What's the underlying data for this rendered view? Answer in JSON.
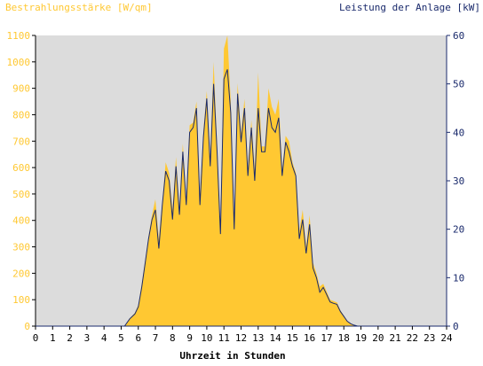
{
  "chart_data": {
    "type": "area",
    "left_axis_title": "Bestrahlungsstärke [W/qm]",
    "right_axis_title": "Leistung der Anlage [kW]",
    "xlabel": "Uhrzeit in Stunden",
    "x_ticks": [
      "0",
      "1",
      "2",
      "3",
      "4",
      "5",
      "6",
      "7",
      "8",
      "9",
      "10",
      "11",
      "12",
      "13",
      "14",
      "15",
      "16",
      "17",
      "18",
      "19",
      "20",
      "21",
      "22",
      "23",
      "24"
    ],
    "left_ticks": [
      "0",
      "100",
      "200",
      "300",
      "400",
      "500",
      "600",
      "700",
      "800",
      "900",
      "1000",
      "1100"
    ],
    "right_ticks": [
      "0",
      "10",
      "20",
      "30",
      "40",
      "50",
      "60"
    ],
    "xlim": [
      0,
      24
    ],
    "ylim_left": [
      0,
      1100
    ],
    "ylim_right": [
      0,
      60
    ],
    "grid": false,
    "colors": {
      "plot_bg": "#dcdcdc",
      "irradiance_fill": "#ffc832",
      "power_line": "#1a2a6c",
      "left_axis_text": "#ffc832",
      "right_axis_text": "#1a2a6c",
      "axis_text": "#000000"
    },
    "series": [
      {
        "name": "Bestrahlungsstärke",
        "axis": "left",
        "style": "area",
        "x": [
          5.2,
          5.5,
          5.8,
          6.0,
          6.2,
          6.4,
          6.6,
          6.8,
          7.0,
          7.2,
          7.4,
          7.6,
          7.8,
          8.0,
          8.2,
          8.4,
          8.6,
          8.8,
          9.0,
          9.2,
          9.4,
          9.6,
          9.8,
          10.0,
          10.2,
          10.4,
          10.6,
          10.8,
          11.0,
          11.2,
          11.4,
          11.6,
          11.8,
          12.0,
          12.2,
          12.4,
          12.6,
          12.8,
          13.0,
          13.2,
          13.4,
          13.6,
          13.8,
          14.0,
          14.2,
          14.4,
          14.6,
          14.8,
          15.0,
          15.2,
          15.4,
          15.6,
          15.8,
          16.0,
          16.2,
          16.4,
          16.6,
          16.8,
          17.0,
          17.2,
          17.4,
          17.6,
          17.8,
          18.0,
          18.2,
          18.4,
          18.6,
          18.8,
          19.0,
          19.2,
          19.4,
          19.6,
          19.8,
          20.0,
          20.2
        ],
        "y": [
          0,
          30,
          50,
          80,
          160,
          250,
          340,
          420,
          480,
          330,
          470,
          620,
          580,
          440,
          640,
          450,
          690,
          480,
          760,
          770,
          850,
          500,
          740,
          890,
          640,
          1000,
          690,
          370,
          1050,
          1100,
          850,
          390,
          920,
          730,
          860,
          600,
          780,
          590,
          960,
          680,
          680,
          900,
          830,
          800,
          860,
          590,
          720,
          700,
          620,
          580,
          360,
          440,
          300,
          420,
          240,
          200,
          150,
          160,
          130,
          100,
          95,
          90,
          60,
          40,
          20,
          10,
          5,
          0,
          0,
          0,
          0,
          0,
          0,
          0,
          0
        ]
      },
      {
        "name": "Leistung der Anlage",
        "axis": "right",
        "style": "line",
        "x": [
          5.2,
          5.5,
          5.8,
          6.0,
          6.2,
          6.4,
          6.6,
          6.8,
          7.0,
          7.2,
          7.4,
          7.6,
          7.8,
          8.0,
          8.2,
          8.4,
          8.6,
          8.8,
          9.0,
          9.2,
          9.4,
          9.6,
          9.8,
          10.0,
          10.2,
          10.4,
          10.6,
          10.8,
          11.0,
          11.2,
          11.4,
          11.6,
          11.8,
          12.0,
          12.2,
          12.4,
          12.6,
          12.8,
          13.0,
          13.2,
          13.4,
          13.6,
          13.8,
          14.0,
          14.2,
          14.4,
          14.6,
          14.8,
          15.0,
          15.2,
          15.4,
          15.6,
          15.8,
          16.0,
          16.2,
          16.4,
          16.6,
          16.8,
          17.0,
          17.2,
          17.4,
          17.6,
          17.8,
          18.0,
          18.2,
          18.4,
          18.6,
          18.8,
          19.0,
          19.2,
          19.4,
          19.6,
          19.8,
          20.0,
          20.2
        ],
        "y": [
          0,
          1.5,
          2.5,
          4,
          8,
          13,
          18,
          22,
          24,
          16,
          25,
          32,
          30,
          22,
          33,
          23,
          36,
          25,
          40,
          41,
          45,
          25,
          39,
          47,
          33,
          50,
          36,
          19,
          51,
          53,
          44,
          20,
          48,
          38,
          45,
          31,
          41,
          30,
          45,
          36,
          36,
          45,
          41,
          40,
          43,
          31,
          38,
          36,
          33,
          31,
          18,
          22,
          15,
          21,
          12,
          10,
          7,
          8,
          6.5,
          5,
          4.7,
          4.5,
          3,
          2,
          1,
          0.5,
          0.2,
          0,
          0,
          0,
          0,
          0,
          0,
          0,
          0
        ]
      }
    ]
  }
}
